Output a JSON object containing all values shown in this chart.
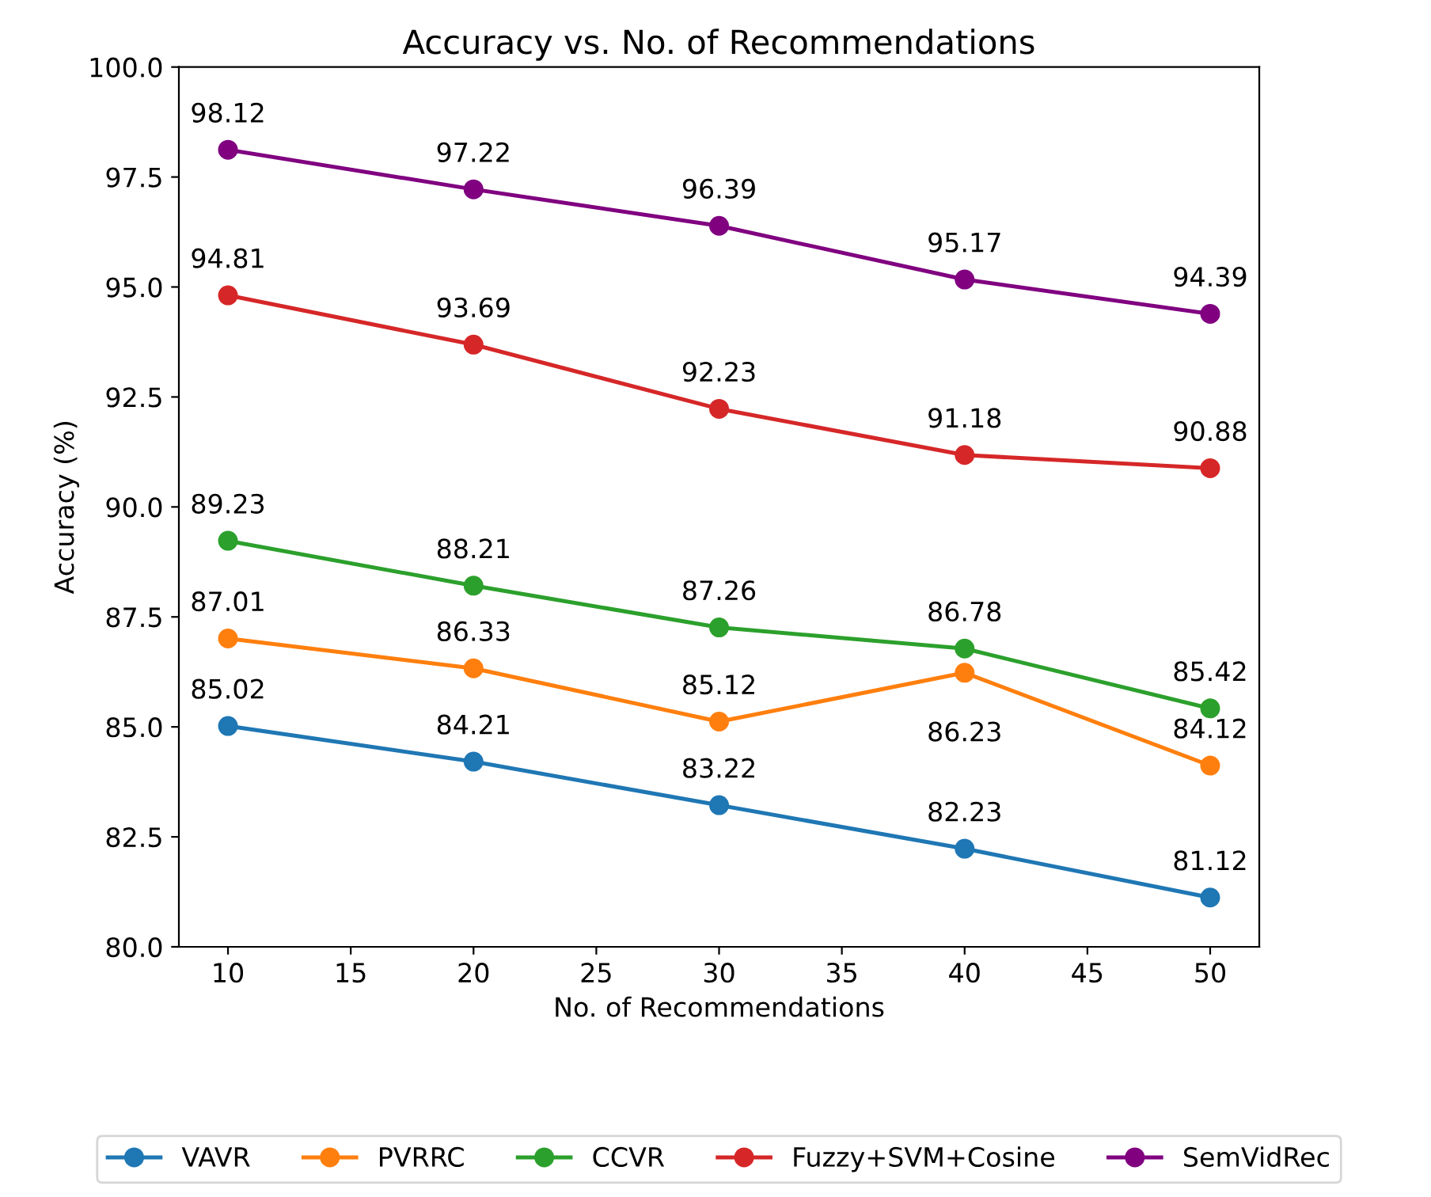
{
  "chart_data": {
    "type": "line",
    "title": "Accuracy vs. No. of Recommendations",
    "xlabel": "No. of Recommendations",
    "ylabel": "Accuracy (%)",
    "x": [
      10,
      20,
      30,
      40,
      50
    ],
    "series": [
      {
        "name": "VAVR",
        "color": "#1f77b4",
        "values": [
          85.02,
          84.21,
          83.22,
          82.23,
          81.12
        ]
      },
      {
        "name": "PVRRC",
        "color": "#ff7f0e",
        "values": [
          87.01,
          86.33,
          85.12,
          86.23,
          84.12
        ]
      },
      {
        "name": "CCVR",
        "color": "#2ca02c",
        "values": [
          89.23,
          88.21,
          87.26,
          86.78,
          85.42
        ]
      },
      {
        "name": "Fuzzy+SVM+Cosine",
        "color": "#d62728",
        "values": [
          94.81,
          93.69,
          92.23,
          91.18,
          90.88
        ]
      },
      {
        "name": "SemVidRec",
        "color": "#800080",
        "values": [
          98.12,
          97.22,
          96.39,
          95.17,
          94.39
        ]
      }
    ],
    "xlim": [
      8,
      52
    ],
    "xticks": [
      10,
      15,
      20,
      25,
      30,
      35,
      40,
      45,
      50
    ],
    "ylim": [
      80,
      100
    ],
    "yticks": [
      {
        "value": 80,
        "label": "80.0"
      },
      82.5,
      {
        "value": 85,
        "label": "85.0"
      },
      87.5,
      {
        "value": 90,
        "label": "90.0"
      },
      92.5,
      {
        "value": 95,
        "label": "95.0"
      },
      97.5,
      {
        "value": 100,
        "label": "100.0"
      }
    ],
    "grid": false,
    "legend": "bottom",
    "marker": "circle",
    "line_style": "solid",
    "data_labels": true
  }
}
